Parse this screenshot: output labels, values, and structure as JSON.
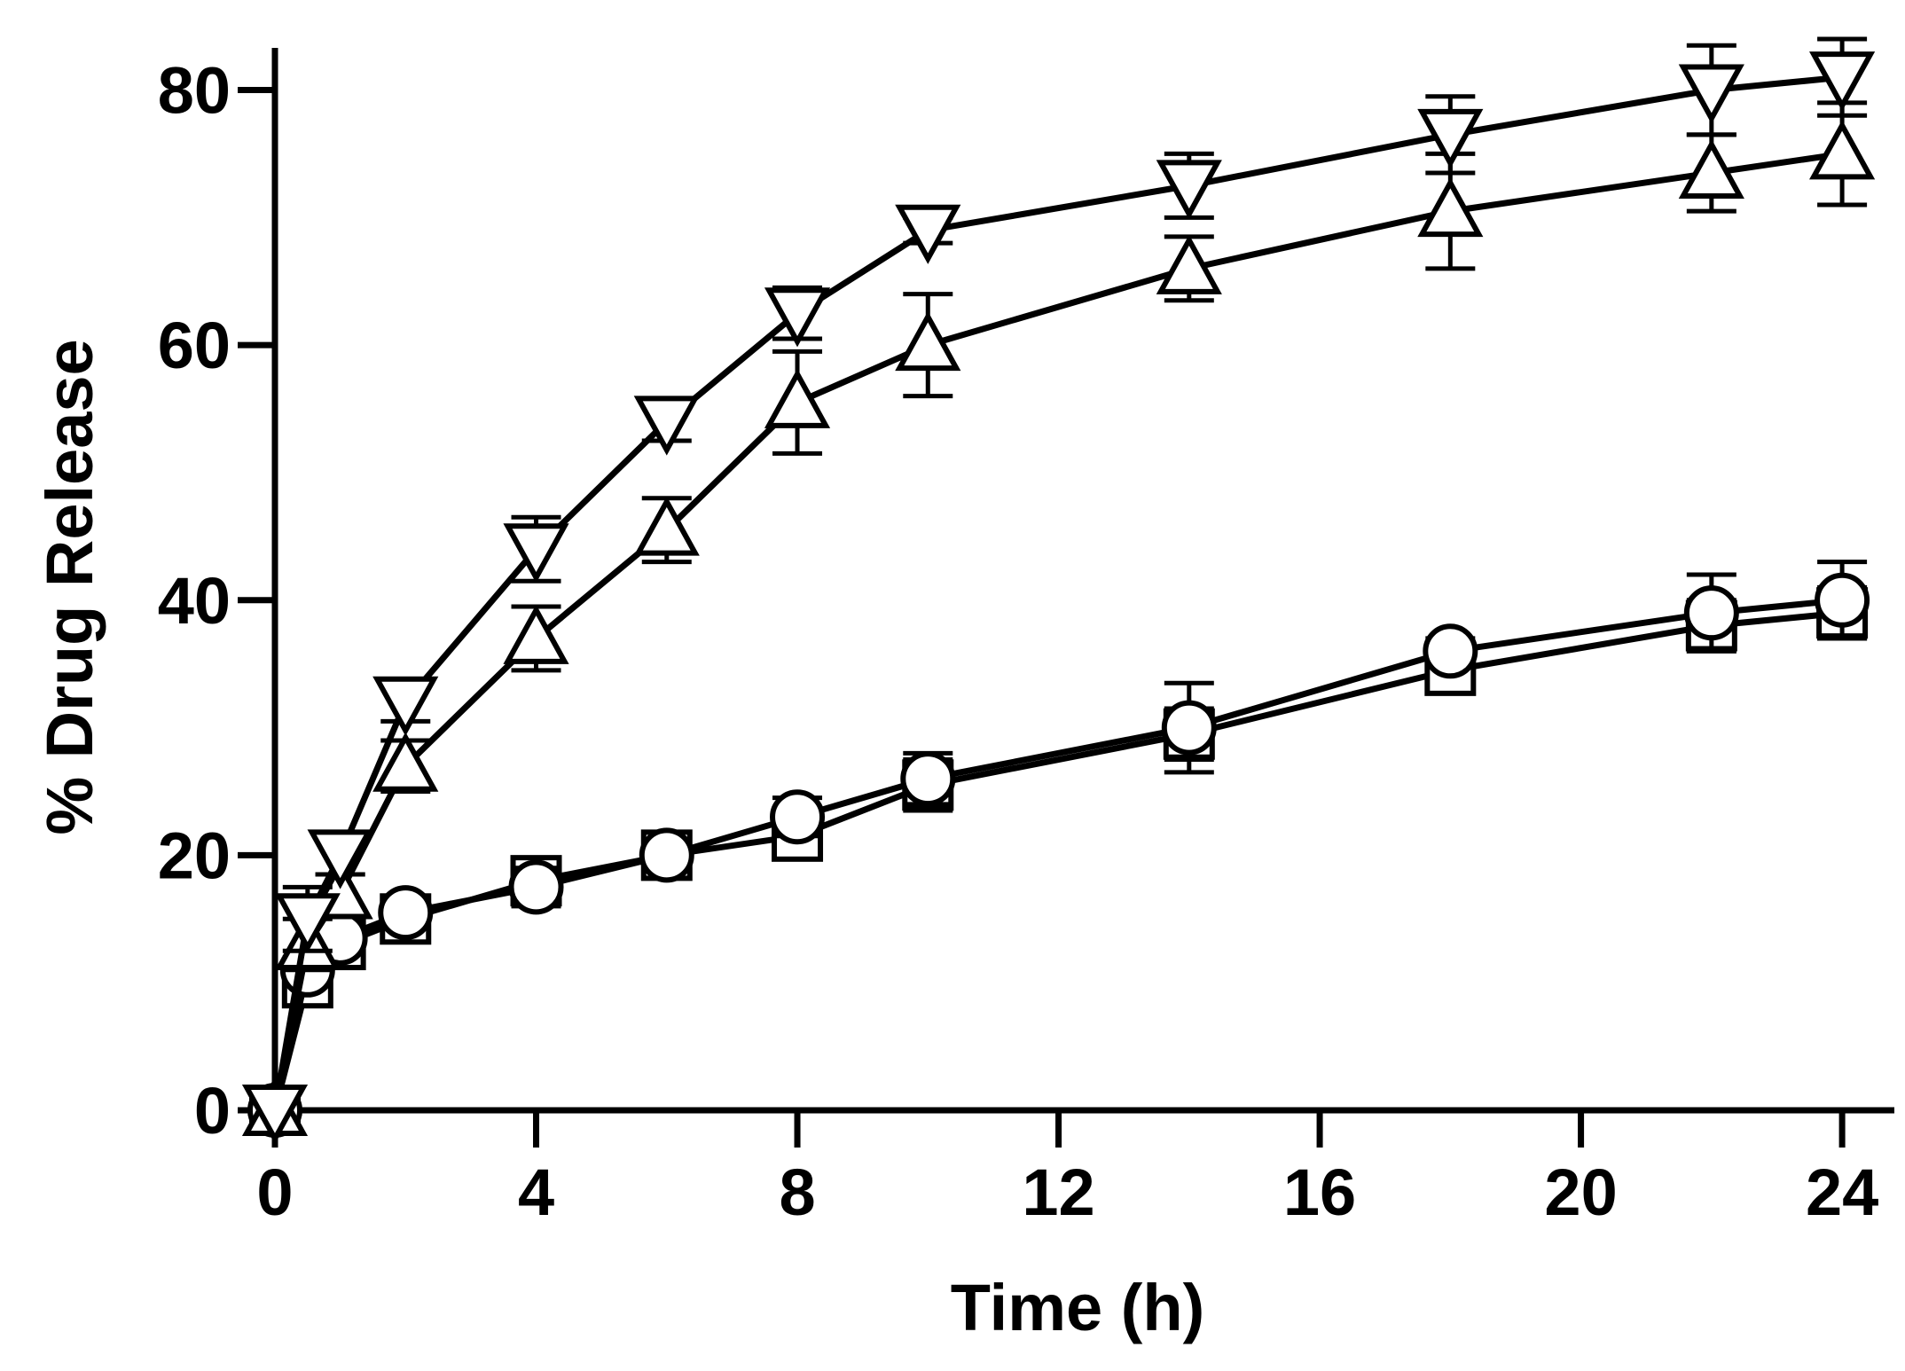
{
  "chart_data": {
    "type": "line",
    "title": "",
    "xlabel": "Time (h)",
    "ylabel": "% Drug Release",
    "xlim": [
      0,
      24.8
    ],
    "ylim": [
      0,
      84
    ],
    "xticks": [
      0,
      4,
      8,
      12,
      16,
      20,
      24
    ],
    "yticks": [
      0,
      20,
      40,
      60,
      80
    ],
    "xtick_labels": [
      "0",
      "4",
      "8",
      "12",
      "16",
      "20",
      "24"
    ],
    "ytick_labels": [
      "0",
      "20",
      "40",
      "60",
      "80"
    ],
    "grid": false,
    "legend": null,
    "colors": {
      "line": "#000000",
      "marker_fill": "#ffffff"
    },
    "series": [
      {
        "name": "square",
        "marker": "square",
        "x": [
          0,
          0.5,
          1,
          2,
          4,
          6,
          8,
          10,
          14,
          18,
          22,
          24
        ],
        "y": [
          0,
          10,
          13,
          15,
          18,
          20,
          21.5,
          25.5,
          29.5,
          34.5,
          38,
          39
        ],
        "err": [
          0,
          1,
          1,
          1,
          1.5,
          1,
          1.5,
          2,
          2,
          1.5,
          2,
          2
        ]
      },
      {
        "name": "circle",
        "marker": "circle",
        "x": [
          0,
          0.5,
          1,
          2,
          4,
          6,
          8,
          10,
          14,
          18,
          22,
          24
        ],
        "y": [
          0,
          11,
          13.5,
          15.5,
          17.5,
          20,
          23,
          26,
          30,
          36,
          39,
          40
        ],
        "err": [
          0,
          1,
          1,
          1,
          1.5,
          1,
          1.5,
          2,
          3.5,
          1,
          3,
          3
        ]
      },
      {
        "name": "triangle-up",
        "marker": "triangle-up",
        "x": [
          0,
          0.5,
          1,
          2,
          4,
          6,
          8,
          10,
          14,
          18,
          22,
          24
        ],
        "y": [
          0,
          13,
          17,
          27,
          37,
          45.5,
          55.5,
          60,
          66,
          70.5,
          73.5,
          75
        ],
        "err": [
          0,
          2,
          1.5,
          2,
          2.5,
          2.5,
          4,
          4,
          2.5,
          4.5,
          3,
          4
        ]
      },
      {
        "name": "triangle-down",
        "marker": "triangle-down",
        "x": [
          0,
          0.5,
          1,
          2,
          4,
          6,
          8,
          10,
          14,
          18,
          22,
          24
        ],
        "y": [
          0,
          15,
          20,
          32,
          44,
          54,
          62.5,
          69,
          72.5,
          76.5,
          80,
          81
        ],
        "err": [
          0,
          2.5,
          1.5,
          1.5,
          2.5,
          1.5,
          2,
          1,
          2.5,
          3,
          3.5,
          3
        ]
      }
    ]
  }
}
